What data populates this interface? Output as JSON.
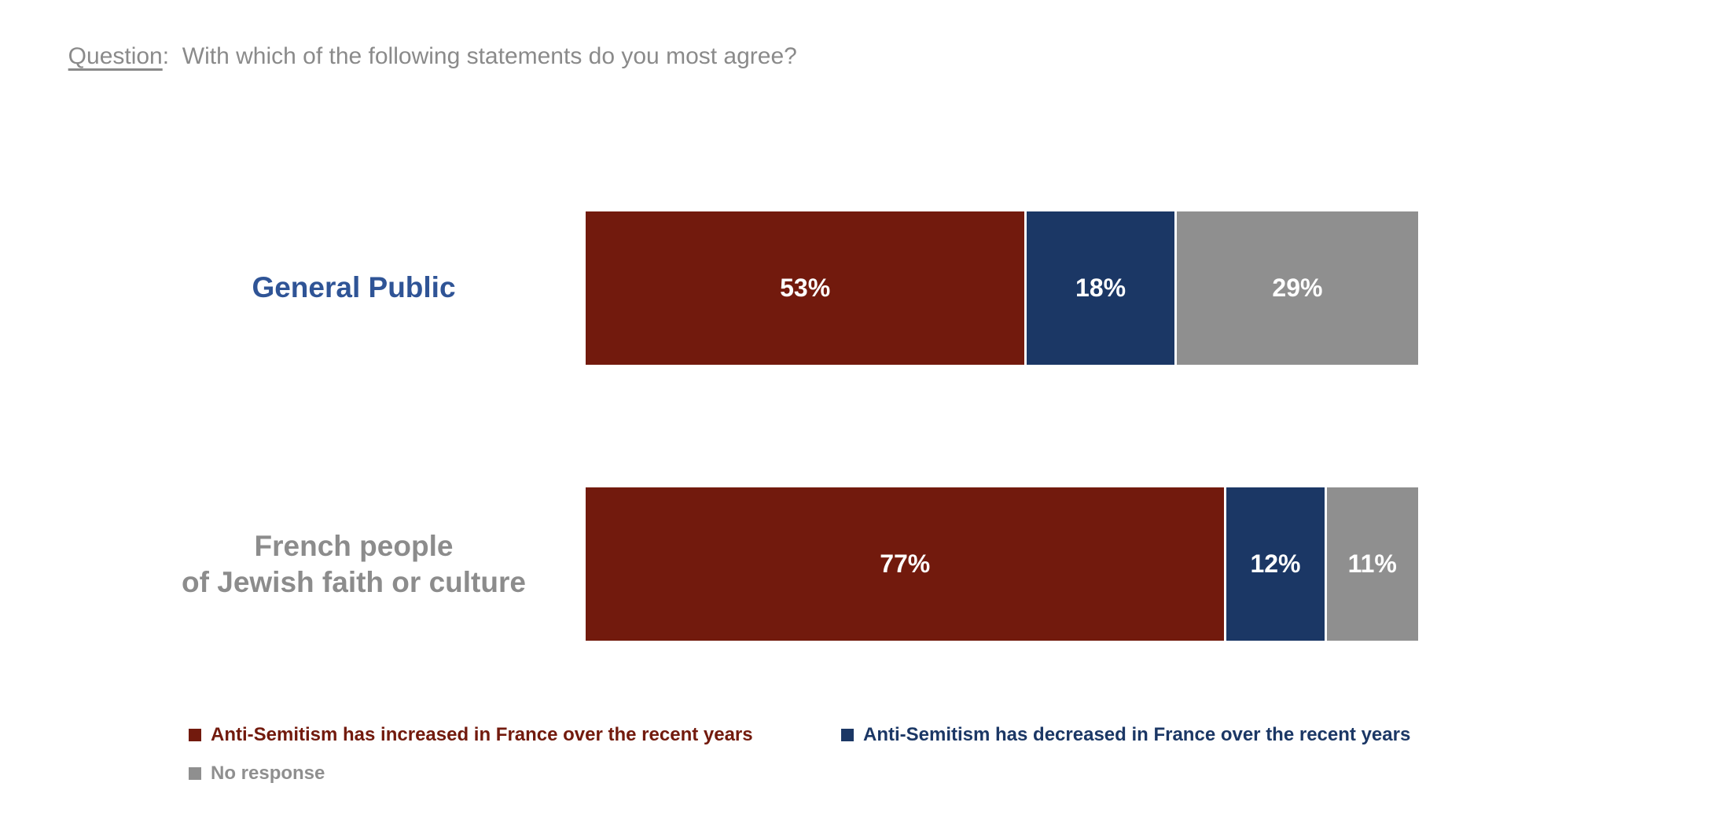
{
  "title": {
    "label": "Question",
    "separator": ":  ",
    "text": "With which of the following statements do you most agree?"
  },
  "colors": {
    "increase_red": "#721A0D",
    "decrease_navy": "#1B3765",
    "no_response_gray": "#8F8F8F",
    "category_blue": "#2F5496",
    "category_gray": "#8C8C8C",
    "title_gray": "#8A8A8A",
    "value_label_white": "#FFFFFF",
    "background": "#FFFFFF"
  },
  "chart_data": {
    "type": "bar",
    "subtype": "horizontal-stacked",
    "title": "Question: With which of the following statements do you most agree?",
    "categories": [
      "General Public",
      "French people of Jewish faith or culture"
    ],
    "category_lines": [
      [
        "General Public"
      ],
      [
        "French people",
        "of Jewish faith or culture"
      ]
    ],
    "series": [
      {
        "name": "Anti-Semitism has increased in France over the recent years",
        "color": "#721A0D",
        "values": [
          53,
          77
        ]
      },
      {
        "name": "Anti-Semitism has decreased in France over the recent years",
        "color": "#1B3765",
        "values": [
          18,
          12
        ]
      },
      {
        "name": "No response",
        "color": "#8F8F8F",
        "values": [
          29,
          11
        ]
      }
    ],
    "value_suffix": "%",
    "xlim": [
      0,
      100
    ],
    "grid": false,
    "legend_position": "bottom"
  }
}
